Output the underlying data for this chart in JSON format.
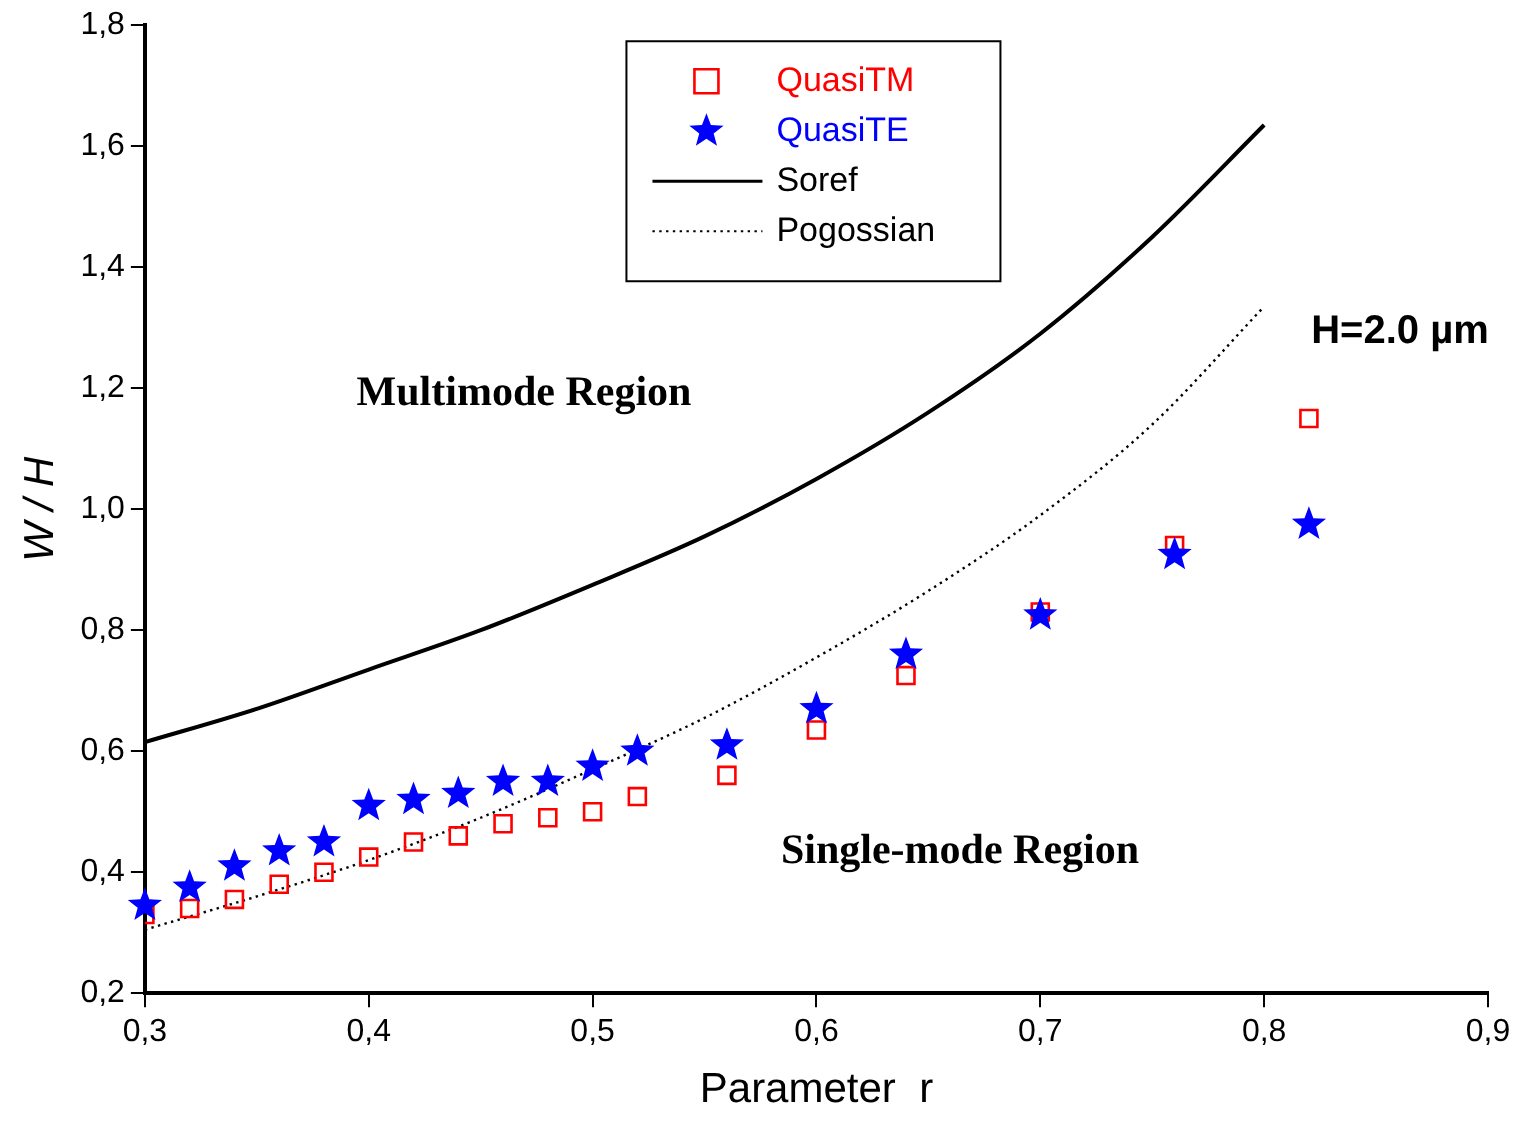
{
  "chart_data": {
    "type": "scatter",
    "xlabel": "Parameter  r",
    "ylabel": "W / H",
    "annotations": [
      "Multimode Region",
      "Single-mode Region",
      "H=2.0 µm"
    ],
    "xlim": [
      0.3,
      0.9
    ],
    "xticks": [
      {
        "value": 0.3,
        "label": "0,3"
      },
      {
        "value": 0.4,
        "label": "0,4"
      },
      {
        "value": 0.5,
        "label": "0,5"
      },
      {
        "value": 0.6,
        "label": "0,6"
      },
      {
        "value": 0.7,
        "label": "0,7"
      },
      {
        "value": 0.8,
        "label": "0,8"
      },
      {
        "value": 0.9,
        "label": "0,9"
      }
    ],
    "ylim": [
      0.2,
      1.8
    ],
    "yticks": [
      {
        "value": 0.2,
        "label": "0,2"
      },
      {
        "value": 0.4,
        "label": "0,4"
      },
      {
        "value": 0.6,
        "label": "0,6"
      },
      {
        "value": 0.8,
        "label": "0,8"
      },
      {
        "value": 1.0,
        "label": "1,0"
      },
      {
        "value": 1.2,
        "label": "1,2"
      },
      {
        "value": 1.4,
        "label": "1,4"
      },
      {
        "value": 1.6,
        "label": "1,6"
      },
      {
        "value": 1.8,
        "label": "1,8"
      }
    ],
    "grid": false,
    "legend": "top",
    "series": [
      {
        "name": "QuasiTM",
        "marker": "square",
        "color": "#ff0000",
        "x": [
          0.3,
          0.32,
          0.34,
          0.36,
          0.38,
          0.4,
          0.42,
          0.44,
          0.46,
          0.48,
          0.5,
          0.52,
          0.56,
          0.6,
          0.64,
          0.7,
          0.76,
          0.82
        ],
        "values": [
          0.33,
          0.34,
          0.355,
          0.38,
          0.4,
          0.425,
          0.45,
          0.46,
          0.48,
          0.49,
          0.5,
          0.525,
          0.56,
          0.635,
          0.725,
          0.83,
          0.94,
          1.15
        ]
      },
      {
        "name": "QuasiTE",
        "marker": "star",
        "color": "#0000ff",
        "x": [
          0.3,
          0.32,
          0.34,
          0.36,
          0.38,
          0.4,
          0.42,
          0.44,
          0.46,
          0.48,
          0.5,
          0.52,
          0.56,
          0.6,
          0.64,
          0.7,
          0.76,
          0.82
        ],
        "values": [
          0.345,
          0.375,
          0.41,
          0.435,
          0.45,
          0.51,
          0.52,
          0.53,
          0.55,
          0.55,
          0.575,
          0.6,
          0.61,
          0.67,
          0.76,
          0.825,
          0.925,
          0.975
        ]
      },
      {
        "name": "Soref",
        "type": "line",
        "line_style": "solid",
        "color": "#000000",
        "x": [
          0.3,
          0.35,
          0.4,
          0.45,
          0.5,
          0.55,
          0.6,
          0.65,
          0.7,
          0.75,
          0.8
        ],
        "values": [
          0.615,
          0.67,
          0.735,
          0.8,
          0.875,
          0.955,
          1.05,
          1.16,
          1.29,
          1.45,
          1.635
        ]
      },
      {
        "name": "Pogossian",
        "type": "line",
        "line_style": "dotted",
        "color": "#000000",
        "x": [
          0.3,
          0.35,
          0.4,
          0.45,
          0.5,
          0.55,
          0.6,
          0.65,
          0.7,
          0.75,
          0.8
        ],
        "values": [
          0.305,
          0.36,
          0.42,
          0.49,
          0.57,
          0.655,
          0.755,
          0.865,
          0.99,
          1.14,
          1.335
        ]
      }
    ]
  }
}
